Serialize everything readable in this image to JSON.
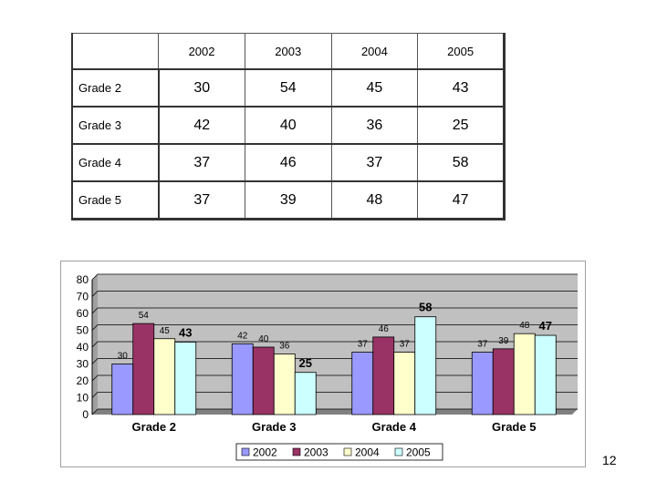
{
  "table": {
    "columns": [
      "2002",
      "2003",
      "2004",
      "2005"
    ],
    "rows": [
      {
        "label": "Grade 2",
        "values": [
          "30",
          "54",
          "45",
          "43"
        ]
      },
      {
        "label": "Grade 3",
        "values": [
          "42",
          "40",
          "36",
          "25"
        ]
      },
      {
        "label": "Grade 4",
        "values": [
          "37",
          "46",
          "37",
          "58"
        ]
      },
      {
        "label": "Grade 5",
        "values": [
          "37",
          "39",
          "48",
          "47"
        ]
      }
    ]
  },
  "chart_data": {
    "type": "bar",
    "title": "",
    "xlabel": "",
    "ylabel": "",
    "categories": [
      "Grade 2",
      "Grade 3",
      "Grade 4",
      "Grade 5"
    ],
    "series": [
      {
        "name": "2002",
        "color": "#9999ff",
        "values": [
          30,
          42,
          37,
          37
        ]
      },
      {
        "name": "2003",
        "color": "#993366",
        "values": [
          54,
          40,
          46,
          39
        ]
      },
      {
        "name": "2004",
        "color": "#ffffcc",
        "values": [
          45,
          36,
          37,
          48
        ]
      },
      {
        "name": "2005",
        "color": "#ccffff",
        "values": [
          43,
          25,
          58,
          47
        ]
      }
    ],
    "bold_labels": [
      [
        false,
        false,
        false,
        true
      ],
      [
        false,
        false,
        false,
        true
      ],
      [
        false,
        false,
        false,
        true
      ],
      [
        false,
        false,
        false,
        true
      ]
    ],
    "ylim": [
      0,
      80
    ],
    "yticks": [
      0,
      10,
      20,
      30,
      40,
      50,
      60,
      70,
      80
    ],
    "grid": true,
    "plot_background": "#c0c0c0",
    "legend_position": "bottom"
  },
  "page_number": "12"
}
